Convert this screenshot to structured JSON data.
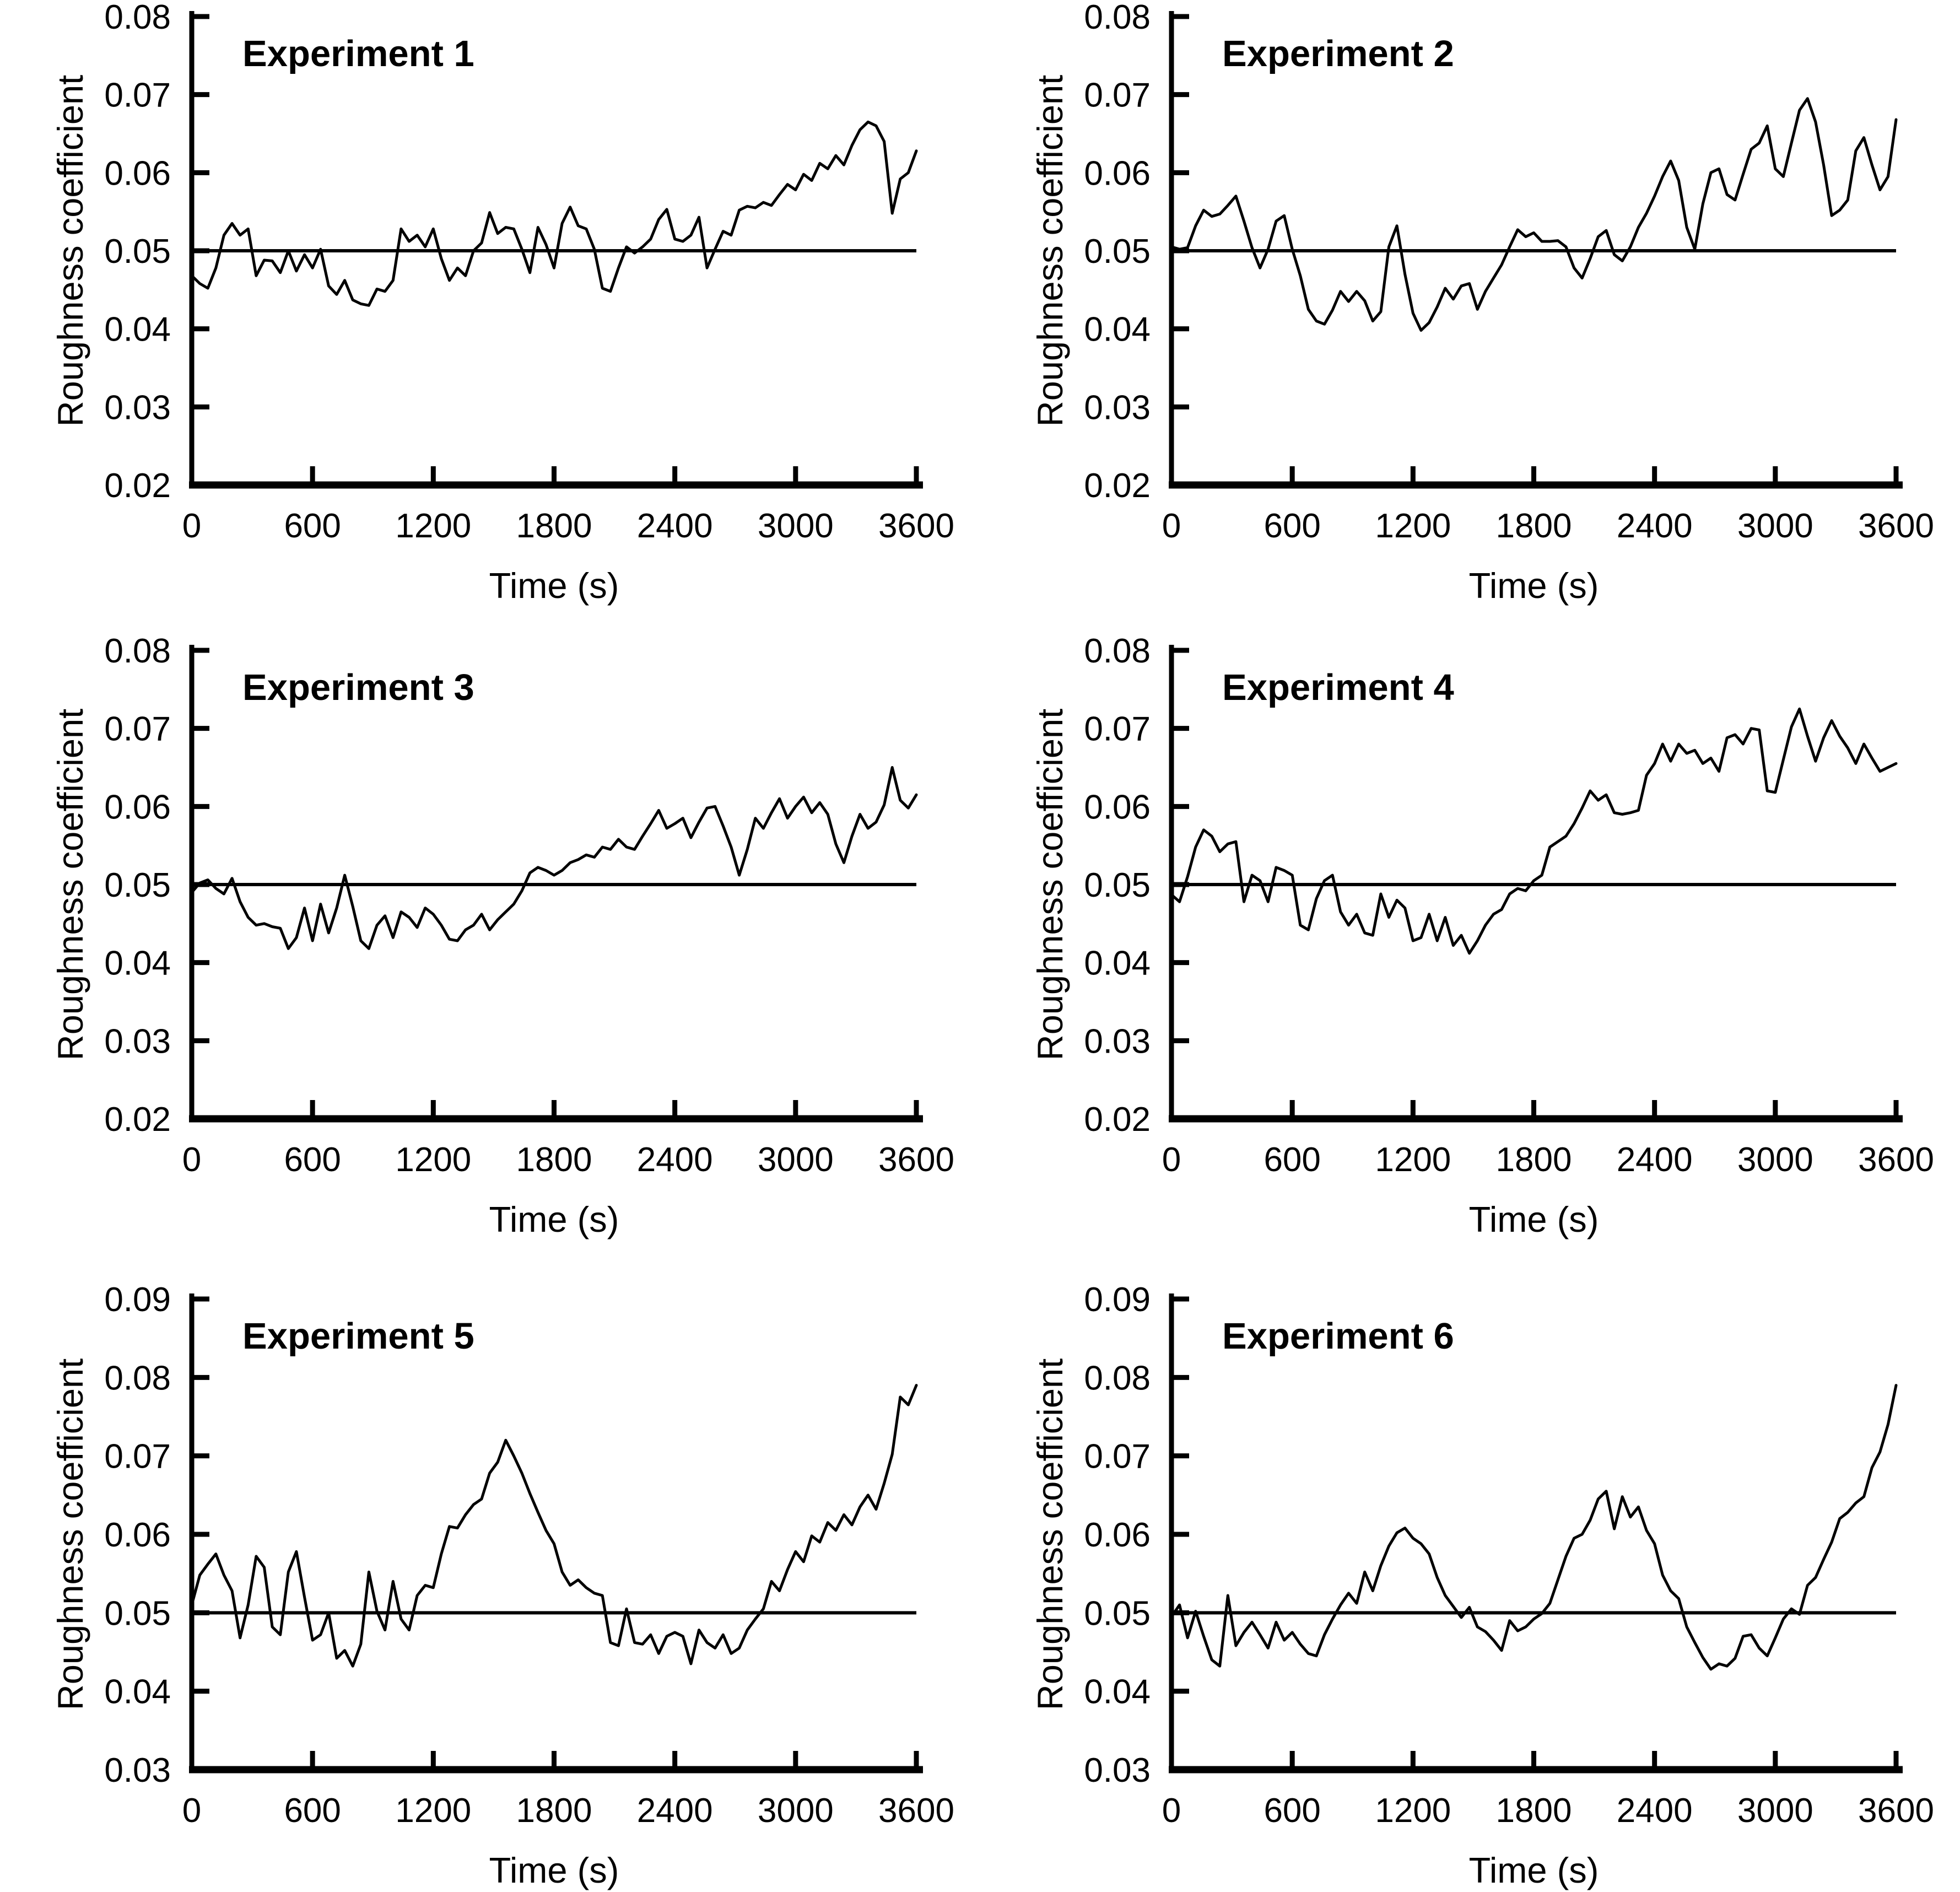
{
  "figure": {
    "background_color": "#ffffff",
    "line_color": "#000000",
    "panel_titles": [
      "Experiment 1",
      "Experiment 2",
      "Experiment 3",
      "Experiment 4",
      "Experiment 5",
      "Experiment 6"
    ]
  },
  "chart_data": [
    {
      "type": "line",
      "title": "Experiment 1",
      "xlabel": "Time (s)",
      "ylabel": "Roughness coefficient",
      "xlim": [
        0,
        3600
      ],
      "ylim": [
        0.02,
        0.08
      ],
      "xticks": [
        0,
        600,
        1200,
        1800,
        2400,
        3000,
        3600
      ],
      "yticks": [
        0.02,
        0.03,
        0.04,
        0.05,
        0.06,
        0.07,
        0.08
      ],
      "grid": false,
      "legend_position": "none",
      "reference_line": 0.05,
      "x_start": 0,
      "x_step": 40,
      "values": [
        0.0468,
        0.0458,
        0.0452,
        0.0478,
        0.052,
        0.0535,
        0.052,
        0.0528,
        0.0468,
        0.0488,
        0.0487,
        0.0472,
        0.05,
        0.0474,
        0.0495,
        0.0478,
        0.0502,
        0.0455,
        0.0444,
        0.0462,
        0.0437,
        0.0432,
        0.043,
        0.0451,
        0.0448,
        0.0462,
        0.0528,
        0.0512,
        0.052,
        0.0505,
        0.0528,
        0.049,
        0.0462,
        0.0478,
        0.0468,
        0.05,
        0.051,
        0.0549,
        0.0522,
        0.053,
        0.0528,
        0.0502,
        0.0472,
        0.053,
        0.0508,
        0.0478,
        0.0535,
        0.0556,
        0.0532,
        0.0528,
        0.0502,
        0.0452,
        0.0448,
        0.0478,
        0.0505,
        0.0497,
        0.0505,
        0.0515,
        0.054,
        0.0553,
        0.0515,
        0.0512,
        0.052,
        0.0543,
        0.0478,
        0.0502,
        0.0525,
        0.052,
        0.0552,
        0.0557,
        0.0555,
        0.0562,
        0.0558,
        0.0572,
        0.0585,
        0.0578,
        0.0598,
        0.059,
        0.0612,
        0.0605,
        0.0622,
        0.061,
        0.0635,
        0.0655,
        0.0665,
        0.066,
        0.064,
        0.0548,
        0.0592,
        0.06,
        0.0628
      ]
    },
    {
      "type": "line",
      "title": "Experiment 2",
      "xlabel": "Time (s)",
      "ylabel": "Roughness coefficient",
      "xlim": [
        0,
        3600
      ],
      "ylim": [
        0.02,
        0.08
      ],
      "xticks": [
        0,
        600,
        1200,
        1800,
        2400,
        3000,
        3600
      ],
      "yticks": [
        0.02,
        0.03,
        0.04,
        0.05,
        0.06,
        0.07,
        0.08
      ],
      "grid": false,
      "legend_position": "none",
      "reference_line": 0.05,
      "x_start": 0,
      "x_step": 40,
      "values": [
        0.0505,
        0.0502,
        0.0504,
        0.0532,
        0.0552,
        0.0544,
        0.0547,
        0.0558,
        0.057,
        0.0538,
        0.0504,
        0.0478,
        0.0502,
        0.0538,
        0.0545,
        0.0502,
        0.0468,
        0.0425,
        0.041,
        0.0406,
        0.0424,
        0.0448,
        0.0435,
        0.0448,
        0.0436,
        0.041,
        0.0422,
        0.0505,
        0.0532,
        0.047,
        0.042,
        0.0398,
        0.0408,
        0.0428,
        0.0452,
        0.0438,
        0.0455,
        0.0458,
        0.0425,
        0.0448,
        0.0465,
        0.0482,
        0.0505,
        0.0527,
        0.0518,
        0.0523,
        0.0512,
        0.0512,
        0.0513,
        0.0505,
        0.0478,
        0.0465,
        0.049,
        0.0518,
        0.0526,
        0.0495,
        0.0487,
        0.0505,
        0.053,
        0.0548,
        0.057,
        0.0595,
        0.0615,
        0.059,
        0.053,
        0.0502,
        0.056,
        0.06,
        0.0605,
        0.0572,
        0.0565,
        0.0598,
        0.063,
        0.0638,
        0.066,
        0.0605,
        0.0595,
        0.0638,
        0.068,
        0.0695,
        0.0665,
        0.061,
        0.0545,
        0.0552,
        0.0565,
        0.0628,
        0.0645,
        0.061,
        0.0578,
        0.0595,
        0.0668
      ]
    },
    {
      "type": "line",
      "title": "Experiment 3",
      "xlabel": "Time (s)",
      "ylabel": "Roughness coefficient",
      "xlim": [
        0,
        3600
      ],
      "ylim": [
        0.02,
        0.08
      ],
      "xticks": [
        0,
        600,
        1200,
        1800,
        2400,
        3000,
        3600
      ],
      "yticks": [
        0.02,
        0.03,
        0.04,
        0.05,
        0.06,
        0.07,
        0.08
      ],
      "grid": false,
      "legend_position": "none",
      "reference_line": 0.05,
      "x_start": 0,
      "x_step": 40,
      "values": [
        0.049,
        0.0502,
        0.0506,
        0.0495,
        0.0488,
        0.0508,
        0.0478,
        0.0458,
        0.0448,
        0.045,
        0.0446,
        0.0444,
        0.0418,
        0.0432,
        0.047,
        0.0428,
        0.0475,
        0.0438,
        0.047,
        0.0512,
        0.0472,
        0.0428,
        0.0418,
        0.0448,
        0.046,
        0.0432,
        0.0465,
        0.0458,
        0.0445,
        0.047,
        0.0462,
        0.0448,
        0.043,
        0.0428,
        0.0442,
        0.0448,
        0.0462,
        0.0442,
        0.0455,
        0.0465,
        0.0475,
        0.0492,
        0.0515,
        0.0522,
        0.0518,
        0.0512,
        0.0518,
        0.0528,
        0.0532,
        0.0538,
        0.0535,
        0.0548,
        0.0545,
        0.0558,
        0.0548,
        0.0545,
        0.0562,
        0.0578,
        0.0595,
        0.0572,
        0.0578,
        0.0585,
        0.056,
        0.058,
        0.0598,
        0.06,
        0.0575,
        0.0548,
        0.0512,
        0.0545,
        0.0585,
        0.0572,
        0.0592,
        0.061,
        0.0585,
        0.06,
        0.0612,
        0.0592,
        0.0605,
        0.059,
        0.0552,
        0.0528,
        0.0562,
        0.059,
        0.0572,
        0.058,
        0.0602,
        0.065,
        0.0608,
        0.0598,
        0.0615
      ]
    },
    {
      "type": "line",
      "title": "Experiment 4",
      "xlabel": "Time (s)",
      "ylabel": "Roughness coefficient",
      "xlim": [
        0,
        3600
      ],
      "ylim": [
        0.02,
        0.08
      ],
      "xticks": [
        0,
        600,
        1200,
        1800,
        2400,
        3000,
        3600
      ],
      "yticks": [
        0.02,
        0.03,
        0.04,
        0.05,
        0.06,
        0.07,
        0.08
      ],
      "grid": false,
      "legend_position": "none",
      "reference_line": 0.05,
      "x_start": 0,
      "x_step": 40,
      "values": [
        0.0487,
        0.0478,
        0.051,
        0.0548,
        0.057,
        0.0562,
        0.0542,
        0.0552,
        0.0555,
        0.0478,
        0.0512,
        0.0505,
        0.0478,
        0.0522,
        0.0518,
        0.0512,
        0.0448,
        0.0442,
        0.0482,
        0.0505,
        0.0512,
        0.0465,
        0.0448,
        0.0462,
        0.0438,
        0.0435,
        0.0488,
        0.0458,
        0.048,
        0.047,
        0.0428,
        0.0432,
        0.0462,
        0.0428,
        0.0458,
        0.0422,
        0.0435,
        0.0412,
        0.0428,
        0.0448,
        0.0462,
        0.0468,
        0.0488,
        0.0495,
        0.0492,
        0.0505,
        0.0512,
        0.0548,
        0.0555,
        0.0562,
        0.0578,
        0.0598,
        0.062,
        0.0608,
        0.0615,
        0.0592,
        0.059,
        0.0592,
        0.0595,
        0.064,
        0.0655,
        0.068,
        0.0658,
        0.068,
        0.0668,
        0.0672,
        0.0655,
        0.0662,
        0.0645,
        0.0688,
        0.0692,
        0.068,
        0.07,
        0.0698,
        0.062,
        0.0618,
        0.066,
        0.0702,
        0.0725,
        0.069,
        0.0658,
        0.0688,
        0.071,
        0.069,
        0.0675,
        0.0655,
        0.068,
        0.0662,
        0.0645,
        0.065,
        0.0655
      ]
    },
    {
      "type": "line",
      "title": "Experiment 5",
      "xlabel": "Time (s)",
      "ylabel": "Roughness coefficient",
      "xlim": [
        0,
        3600
      ],
      "ylim": [
        0.03,
        0.09
      ],
      "xticks": [
        0,
        600,
        1200,
        1800,
        2400,
        3000,
        3600
      ],
      "yticks": [
        0.03,
        0.04,
        0.05,
        0.06,
        0.07,
        0.08,
        0.09
      ],
      "grid": false,
      "legend_position": "none",
      "reference_line": 0.05,
      "x_start": 0,
      "x_step": 40,
      "values": [
        0.051,
        0.0548,
        0.0562,
        0.0575,
        0.0548,
        0.0528,
        0.0468,
        0.051,
        0.0572,
        0.0558,
        0.0482,
        0.0472,
        0.0552,
        0.0578,
        0.052,
        0.0465,
        0.0472,
        0.05,
        0.0442,
        0.0452,
        0.0432,
        0.046,
        0.0552,
        0.0502,
        0.0478,
        0.054,
        0.0492,
        0.0478,
        0.0522,
        0.0535,
        0.0532,
        0.0575,
        0.061,
        0.0608,
        0.0625,
        0.0638,
        0.0645,
        0.0678,
        0.0692,
        0.072,
        0.07,
        0.0678,
        0.0652,
        0.0628,
        0.0605,
        0.0588,
        0.0552,
        0.0535,
        0.0542,
        0.0532,
        0.0525,
        0.0522,
        0.0462,
        0.0458,
        0.0505,
        0.0462,
        0.046,
        0.0472,
        0.0448,
        0.047,
        0.0475,
        0.047,
        0.0435,
        0.0478,
        0.0462,
        0.0455,
        0.0472,
        0.0448,
        0.0455,
        0.0478,
        0.0492,
        0.0505,
        0.054,
        0.0528,
        0.0555,
        0.0578,
        0.0565,
        0.0598,
        0.059,
        0.0615,
        0.0605,
        0.0625,
        0.0612,
        0.0635,
        0.065,
        0.0632,
        0.0665,
        0.0702,
        0.0775,
        0.0765,
        0.079
      ]
    },
    {
      "type": "line",
      "title": "Experiment 6",
      "xlabel": "Time (s)",
      "ylabel": "Roughness coefficient",
      "xlim": [
        0,
        3600
      ],
      "ylim": [
        0.03,
        0.09
      ],
      "xticks": [
        0,
        600,
        1200,
        1800,
        2400,
        3000,
        3600
      ],
      "yticks": [
        0.03,
        0.04,
        0.05,
        0.06,
        0.07,
        0.08,
        0.09
      ],
      "grid": false,
      "legend_position": "none",
      "reference_line": 0.05,
      "x_start": 0,
      "x_step": 40,
      "values": [
        0.0495,
        0.051,
        0.0468,
        0.0502,
        0.047,
        0.044,
        0.0432,
        0.0522,
        0.0458,
        0.0475,
        0.0488,
        0.0472,
        0.0455,
        0.0488,
        0.0465,
        0.0475,
        0.046,
        0.0448,
        0.0445,
        0.0472,
        0.0492,
        0.051,
        0.0525,
        0.0512,
        0.0552,
        0.0528,
        0.056,
        0.0585,
        0.0602,
        0.0608,
        0.0595,
        0.0588,
        0.0575,
        0.0545,
        0.0522,
        0.0508,
        0.0494,
        0.0507,
        0.0482,
        0.0476,
        0.0465,
        0.0452,
        0.049,
        0.0477,
        0.0482,
        0.0492,
        0.0499,
        0.0512,
        0.0542,
        0.0572,
        0.0595,
        0.06,
        0.0618,
        0.0645,
        0.0655,
        0.0607,
        0.0648,
        0.0622,
        0.0635,
        0.0605,
        0.0588,
        0.0548,
        0.0528,
        0.0518,
        0.0482,
        0.0462,
        0.0443,
        0.0428,
        0.0435,
        0.0432,
        0.0442,
        0.047,
        0.0472,
        0.0455,
        0.0445,
        0.0468,
        0.0492,
        0.0505,
        0.0498,
        0.0535,
        0.0545,
        0.0568,
        0.059,
        0.062,
        0.0628,
        0.064,
        0.0648,
        0.0685,
        0.0705,
        0.074,
        0.079
      ]
    }
  ]
}
